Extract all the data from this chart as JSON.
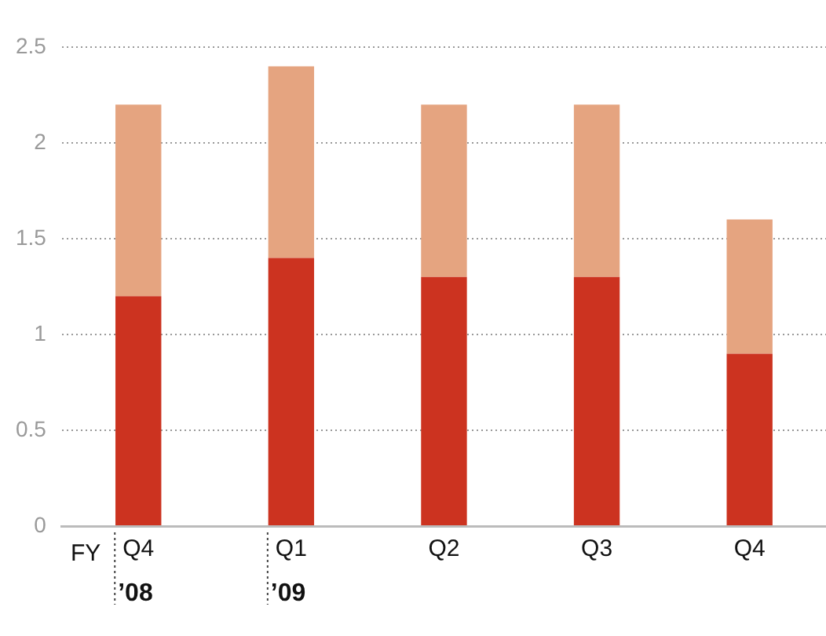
{
  "chart_data": {
    "type": "bar",
    "stacked": true,
    "categories": [
      "Q4",
      "Q1",
      "Q2",
      "Q3",
      "Q4"
    ],
    "series": [
      {
        "color": "#cc3320",
        "values": [
          1.2,
          1.4,
          1.3,
          1.3,
          0.9
        ]
      },
      {
        "color": "#e5a480",
        "values": [
          1.0,
          1.0,
          0.9,
          0.9,
          0.7
        ]
      }
    ],
    "ylim": [
      0,
      2.5
    ],
    "yticks": [
      0,
      0.5,
      1,
      1.5,
      2,
      2.5
    ],
    "grid": "y",
    "legend": false,
    "annotations": [
      "FY",
      "’08",
      "’09"
    ]
  }
}
